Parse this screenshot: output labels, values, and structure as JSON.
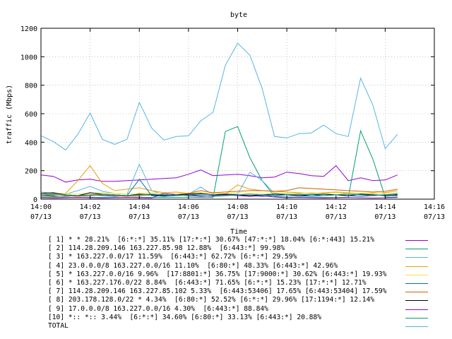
{
  "chart_data": {
    "type": "line",
    "title": "byte",
    "xlabel": "Time",
    "ylabel": "traffic (Mbps)",
    "ylim": [
      0,
      1200
    ],
    "y_ticks": [
      "0",
      "200",
      "400",
      "600",
      "800",
      "1000",
      "1200"
    ],
    "y_tick_values": [
      0,
      200,
      400,
      600,
      800,
      1000,
      1200
    ],
    "xlim": [
      0,
      16
    ],
    "x_ticks": [
      {
        "v": 0,
        "time": "14:00",
        "date": "07/13"
      },
      {
        "v": 2,
        "time": "14:02",
        "date": "07/13"
      },
      {
        "v": 4,
        "time": "14:04",
        "date": "07/13"
      },
      {
        "v": 6,
        "time": "14:06",
        "date": "07/13"
      },
      {
        "v": 8,
        "time": "14:08",
        "date": "07/13"
      },
      {
        "v": 10,
        "time": "14:10",
        "date": "07/13"
      },
      {
        "v": 12,
        "time": "14:12",
        "date": "07/13"
      },
      {
        "v": 14,
        "time": "14:14",
        "date": "07/13"
      },
      {
        "v": 16,
        "time": "14:16",
        "date": "07/13"
      }
    ],
    "x": [
      0,
      0.5,
      1,
      1.5,
      2,
      2.5,
      3,
      3.5,
      4,
      4.5,
      5,
      5.5,
      6,
      6.5,
      7,
      7.5,
      8,
      8.5,
      9,
      9.5,
      10,
      10.5,
      11,
      11.5,
      12,
      12.5,
      13,
      13.5,
      14,
      14.5
    ],
    "grid": true,
    "legend_position": "bottom",
    "series": [
      {
        "name": "[ 1] * * 28.21%  [6:*:*] 35.11% [17:*:*] 30.67% [47:*:*] 18.04% [6:*:443] 15.21%",
        "color": "#9400d3",
        "values": [
          170,
          160,
          120,
          135,
          140,
          125,
          125,
          130,
          135,
          140,
          145,
          150,
          175,
          205,
          165,
          170,
          175,
          165,
          150,
          155,
          190,
          180,
          165,
          160,
          235,
          130,
          150,
          130,
          135,
          170
        ]
      },
      {
        "name": "[ 2] 114.28.209.146 163.227.85.98 12.88%  [6:443:*] 99.98%",
        "color": "#009e73",
        "values": [
          15,
          15,
          12,
          12,
          14,
          12,
          12,
          12,
          14,
          12,
          12,
          12,
          14,
          12,
          12,
          475,
          510,
          290,
          130,
          20,
          15,
          15,
          12,
          12,
          12,
          14,
          480,
          280,
          15,
          15
        ]
      },
      {
        "name": "[ 3] * 163.227.0.0/17 11.59%  [6:443:*] 62.72% [6:*:*] 29.59%",
        "color": "#56b4e9",
        "values": [
          50,
          40,
          35,
          60,
          90,
          55,
          40,
          35,
          245,
          60,
          30,
          40,
          35,
          85,
          30,
          30,
          35,
          190,
          130,
          40,
          35,
          30,
          35,
          35,
          30,
          40,
          35,
          30,
          30,
          40
        ]
      },
      {
        "name": "[ 4] 23.0.0.0/8 163.227.0.0/16 11.10%  [6:80:*] 48.33% [6:443:*] 42.96%",
        "color": "#e69f00",
        "values": [
          30,
          30,
          40,
          130,
          235,
          110,
          60,
          70,
          80,
          60,
          45,
          50,
          40,
          45,
          40,
          35,
          100,
          70,
          60,
          55,
          50,
          45,
          40,
          45,
          50,
          45,
          40,
          40,
          45,
          60
        ]
      },
      {
        "name": "[ 5] * 163.227.0.0/16 9.96%  [17:8801:*] 36.75% [17:9000:*] 30.62% [6:443:*] 19.93%",
        "color": "#f0e442",
        "values": [
          40,
          35,
          40,
          35,
          40,
          45,
          40,
          35,
          40,
          45,
          40,
          40,
          40,
          45,
          40,
          40,
          45,
          40,
          40,
          45,
          40,
          40,
          45,
          40,
          45,
          40,
          40,
          45,
          40,
          45
        ]
      },
      {
        "name": "[ 6] * 163.227.176.0/22 8.84%  [6:443:*] 71.65% [6:*:*] 15.23% [17:*:*] 12.71%",
        "color": "#0072b2",
        "values": [
          30,
          25,
          20,
          25,
          30,
          25,
          20,
          25,
          140,
          25,
          20,
          25,
          30,
          25,
          20,
          25,
          30,
          25,
          20,
          25,
          30,
          25,
          20,
          25,
          30,
          25,
          20,
          25,
          30,
          25
        ]
      },
      {
        "name": "[ 7] 114.28.209.146 163.227.85.102 5.33%  [6:443:53406] 17.65% [6:443:53404] 17.59%",
        "color": "#d55e00",
        "values": [
          25,
          20,
          25,
          20,
          25,
          30,
          25,
          20,
          25,
          30,
          25,
          30,
          40,
          60,
          45,
          50,
          55,
          60,
          60,
          55,
          60,
          80,
          75,
          70,
          65,
          60,
          55,
          50,
          55,
          70
        ]
      },
      {
        "name": "[ 8] 203.178.128.0/22 * 4.34%  [6:80:*] 52.52% [6:*:*] 29.96% [17:1194:*] 12.14%",
        "color": "#000000",
        "values": [
          40,
          45,
          30,
          25,
          45,
          35,
          30,
          25,
          35,
          30,
          25,
          30,
          35,
          40,
          30,
          35,
          30,
          25,
          30,
          35,
          30,
          25,
          30,
          35,
          30,
          25,
          35,
          30,
          25,
          30
        ]
      },
      {
        "name": "[ 9] 17.0.0.0/8 163.227.0.0/16 4.30%  [6:443:*] 88.84%",
        "color": "#9400d3",
        "values": [
          10,
          8,
          10,
          12,
          10,
          8,
          10,
          12,
          10,
          8,
          40,
          30,
          25,
          20,
          25,
          30,
          25,
          20,
          25,
          15,
          10,
          12,
          10,
          8,
          10,
          12,
          10,
          8,
          10,
          12
        ]
      },
      {
        "name": "[10] *:: *:: 3.44%  [6:*:*] 34.60% [6:80:*] 33.13% [6:443:*] 20.88%",
        "color": "#009e73",
        "values": [
          30,
          35,
          30,
          25,
          30,
          35,
          30,
          25,
          30,
          35,
          30,
          25,
          30,
          35,
          30,
          25,
          30,
          35,
          30,
          25,
          30,
          35,
          30,
          25,
          30,
          35,
          30,
          25,
          30,
          35
        ]
      },
      {
        "name": "TOTAL",
        "color": "#56b4e9",
        "values": [
          445,
          405,
          345,
          455,
          605,
          420,
          385,
          420,
          680,
          500,
          415,
          440,
          445,
          550,
          610,
          940,
          1095,
          1010,
          775,
          440,
          430,
          460,
          465,
          520,
          460,
          440,
          850,
          660,
          355,
          455
        ]
      }
    ]
  }
}
